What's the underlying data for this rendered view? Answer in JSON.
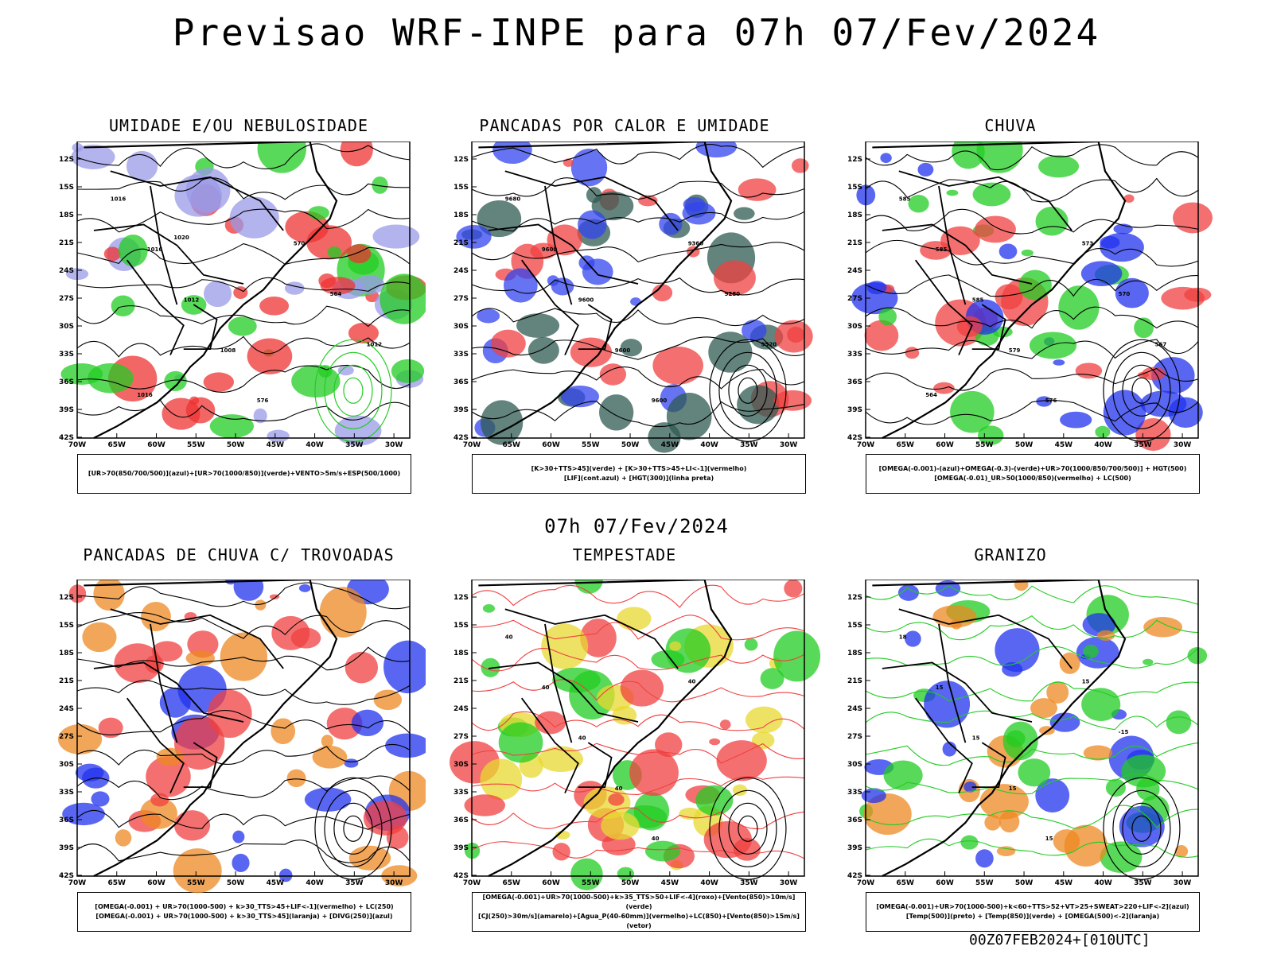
{
  "header": {
    "title": "Previsao WRF-INPE  para 07h 07/Fev/2024"
  },
  "middle": {
    "date": "07h 07/Fev/2024"
  },
  "footer": {
    "stamp": "00Z07FEB2024+[010UTC]"
  },
  "axes": {
    "lat_labels": [
      "12S",
      "15S",
      "18S",
      "21S",
      "24S",
      "27S",
      "30S",
      "33S",
      "36S",
      "39S",
      "42S"
    ],
    "lon_labels": [
      "70W",
      "65W",
      "60W",
      "55W",
      "50W",
      "45W",
      "40W",
      "35W",
      "30W"
    ]
  },
  "panels": [
    {
      "title": "UMIDADE E/OU NEBULOSIDADE",
      "legend": [
        "[UR>70(850/700/500)](azul)+[UR>70(1000/850)](verde)+VENTO>5m/s+ESP(500/1000)"
      ],
      "colors": [
        "#9a9ae8",
        "#22cc22",
        "#ee3333"
      ],
      "labels": [
        "1016",
        "1016",
        "1012",
        "1008",
        "576",
        "570",
        "564",
        "1012",
        "1016",
        "1020"
      ]
    },
    {
      "title": "PANCADAS POR CALOR E UMIDADE",
      "legend": [
        "[K>30+TTS>45](verde) + [K>30+TTS>45+LI<-1](vermelho)",
        "[LIF](cont.azul) + [HGT(300)](linha preta)"
      ],
      "colors": [
        "#2f5a52",
        "#f04040",
        "#3344ee"
      ],
      "labels": [
        "9680",
        "9600",
        "9600",
        "9600",
        "9600",
        "9360",
        "9280",
        "9520"
      ]
    },
    {
      "title": "CHUVA",
      "legend": [
        "[OMEGA(-0.001)-(azul)+OMEGA(-0.3)-(verde)+UR>70(1000/850/700/500)] + HGT(500)",
        "[OMEGA(-0.01)_UR>50(1000/850)(vermelho) + LC(500)"
      ],
      "colors": [
        "#2233ee",
        "#f04040",
        "#22cc22"
      ],
      "labels": [
        "585",
        "585",
        "585",
        "579",
        "576",
        "573",
        "570",
        "567",
        "564"
      ]
    },
    {
      "title": "PANCADAS DE CHUVA C/ TROVOADAS",
      "legend": [
        "[OMEGA(-0.001) + UR>70(1000-500) + k>30_TTS>45+LIF<-1](vermelho) + LC(250)",
        "[OMEGA(-0.001) + UR>70(1000-500) + k>30_TTS>45](laranja) + [DIVG(250)](azul)"
      ],
      "colors": [
        "#f04040",
        "#ee8822",
        "#2233ee"
      ],
      "labels": []
    },
    {
      "title": "TEMPESTADE",
      "legend": [
        "[OMEGA(-0.001)+UR>70(1000-500)+k>35_TTS>50+LIF<-4](roxo)+[Vento(850)>10m/s](verde)",
        "[CJ(250)>30m/s](amarelo)+[Agua_P(40-60mm)](vermelho)+LC(850)+[Vento(850)>15m/s](vetor)"
      ],
      "colors": [
        "#22cc22",
        "#e8d830",
        "#f04040"
      ],
      "labels": [
        "40",
        "40",
        "40",
        "40",
        "40",
        "40"
      ]
    },
    {
      "title": "GRANIZO",
      "legend": [
        "[OMEGA(-0.001)+UR>70(1000-500)+k<60+TTS>52+VT>25+SWEAT>220+LIF<-2](azul)",
        "[Temp(500)](preto) + [Temp(850)](verde) + [OMEGA(500)<-2](laranja)"
      ],
      "colors": [
        "#22cc22",
        "#ee8822",
        "#2233ee"
      ],
      "labels": [
        "18",
        "15",
        "15",
        "15",
        "15",
        "15",
        "-15"
      ]
    }
  ]
}
